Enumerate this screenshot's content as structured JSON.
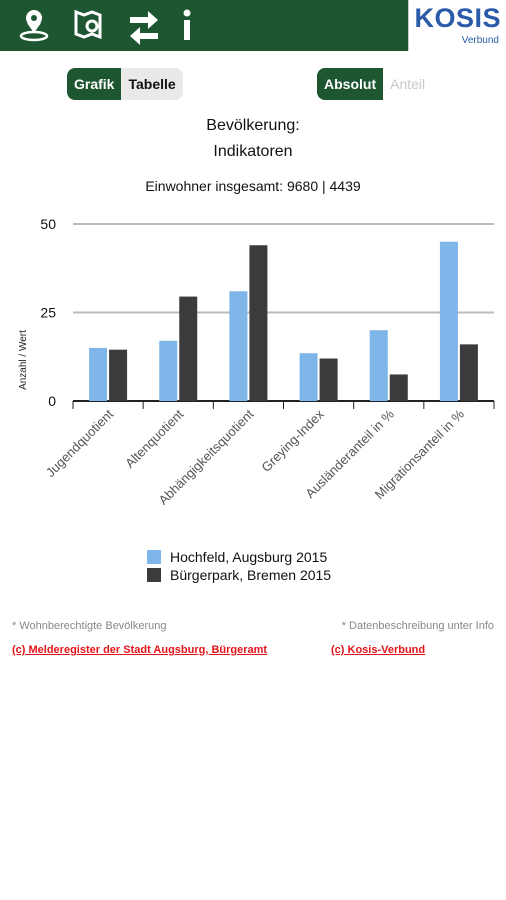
{
  "header": {
    "logo": "KOSIS",
    "logo_sub": "Verbund"
  },
  "toggles": {
    "view": [
      "Grafik",
      "Tabelle"
    ],
    "mode": [
      "Absolut",
      "Anteil"
    ]
  },
  "chart_data": {
    "type": "bar",
    "title": "Bevölkerung:",
    "subtitle": "Indikatoren",
    "note": "Einwohner insgesamt: 9680 | 4439",
    "ylabel": "Anzahl / Wert",
    "categories": [
      "Jugendquotient",
      "Altenquotient",
      "Abhängigkeitsquotient",
      "Greying-Index",
      "Ausländeranteil in %",
      "Migrationsanteil in %"
    ],
    "series": [
      {
        "name": "Hochfeld, Augsburg 2015",
        "color": "#7eb6e9",
        "values": [
          15,
          17,
          31,
          13.5,
          20,
          45
        ]
      },
      {
        "name": "Bürgerpark, Bremen 2015",
        "color": "#3b3b3d",
        "values": [
          14.5,
          29.5,
          44,
          12,
          7.5,
          16
        ]
      }
    ],
    "ylim": [
      0,
      50
    ],
    "yticks": [
      0,
      25,
      50
    ],
    "grid": true
  },
  "footer": {
    "notes": [
      "* Wohnberechtigte Bevölkerung",
      "* Datenbeschreibung unter Info"
    ],
    "links": [
      "(c) Melderegister der Stadt Augsburg, Bürgeramt",
      "(c) Kosis-Verbund"
    ]
  }
}
